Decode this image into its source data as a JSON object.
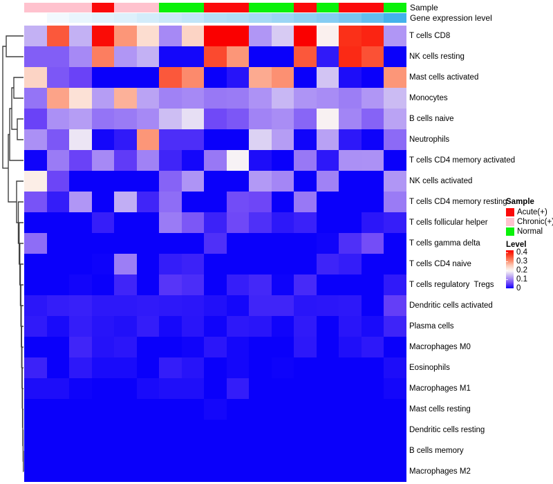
{
  "chart_data": {
    "type": "heatmap",
    "rows": [
      "T cells CD8",
      "NK cells resting",
      "Mast cells activated",
      "Monocytes",
      "B cells naive",
      "Neutrophils",
      "T cells CD4 memory activated",
      "NK cells activated",
      "T cells CD4 memory resting",
      "T cells follicular helper",
      "T cells gamma delta",
      "T cells CD4 naive",
      "T cells regulatory  Tregs",
      "Dendritic cells activated",
      "Plasma cells",
      "Macrophages M0",
      "Eosinophils",
      "Macrophages M1",
      "Mast cells resting",
      "Dendritic cells resting",
      "B cells memory",
      "Macrophages M2"
    ],
    "columns_count": 17,
    "value_range": [
      0,
      0.4
    ],
    "values": [
      [
        0.13,
        0.33,
        0.13,
        0.39,
        0.28,
        0.22,
        0.1,
        0.23,
        0.4,
        0.4,
        0.11,
        0.15,
        0.4,
        0.19,
        0.36,
        0.37,
        0.11
      ],
      [
        0.07,
        0.07,
        0.1,
        0.3,
        0.11,
        0.13,
        0.005,
        0.005,
        0.34,
        0.28,
        0,
        0,
        0.33,
        0.02,
        0.365,
        0.335,
        0
      ],
      [
        0.23,
        0.065,
        0.05,
        0,
        0,
        0,
        0.33,
        0.29,
        0,
        0.015,
        0.265,
        0.285,
        0,
        0.145,
        0.01,
        0,
        0.28
      ],
      [
        0.085,
        0.27,
        0.215,
        0.115,
        0.26,
        0.12,
        0.095,
        0.1,
        0.088,
        0.09,
        0.107,
        0.135,
        0.108,
        0.102,
        0.092,
        0.11,
        0.138
      ],
      [
        0.05,
        0.105,
        0.115,
        0.085,
        0.09,
        0.1,
        0.14,
        0.165,
        0.055,
        0.065,
        0.096,
        0.103,
        0.075,
        0.185,
        0.097,
        0.073,
        0.12
      ],
      [
        0.105,
        0.065,
        0.17,
        0.005,
        0.02,
        0.28,
        0.035,
        0.035,
        0,
        0,
        0.155,
        0.115,
        0.003,
        0.118,
        0.018,
        0.002,
        0.078
      ],
      [
        0.003,
        0.09,
        0.05,
        0.1,
        0.045,
        0.095,
        0.028,
        0.005,
        0.088,
        0.18,
        0.01,
        0,
        0.088,
        0.018,
        0.105,
        0.106,
        0
      ],
      [
        0.2,
        0.052,
        0,
        0,
        0,
        0,
        0.073,
        0.108,
        0,
        0,
        0.112,
        0.098,
        0,
        0.095,
        0,
        0,
        0.11
      ],
      [
        0.062,
        0.022,
        0.11,
        0,
        0.128,
        0.028,
        0.08,
        0,
        0,
        0.057,
        0.053,
        0,
        0.088,
        0,
        0,
        0,
        0.09
      ],
      [
        0,
        0,
        0,
        0.023,
        0,
        0,
        0.09,
        0.065,
        0.026,
        0.054,
        0.036,
        0.018,
        0.025,
        0,
        0,
        0.017,
        0.023
      ],
      [
        0.08,
        0,
        0,
        0,
        0,
        0,
        0,
        0,
        0.036,
        0,
        0,
        0,
        0,
        0.003,
        0.036,
        0.058,
        0
      ],
      [
        0,
        0,
        0,
        0.002,
        0.092,
        0,
        0.022,
        0.026,
        0,
        0,
        0,
        0,
        0,
        0.027,
        0.022,
        0,
        0
      ],
      [
        0,
        0,
        0.004,
        0,
        0.028,
        0,
        0.04,
        0.034,
        0,
        0.023,
        0.03,
        0.002,
        0.032,
        0,
        0,
        0,
        0.02
      ],
      [
        0.017,
        0.022,
        0.024,
        0.018,
        0.018,
        0.02,
        0.018,
        0.017,
        0.012,
        0.005,
        0.028,
        0.028,
        0.016,
        0.017,
        0.018,
        0,
        0.047
      ],
      [
        0.02,
        0.008,
        0.022,
        0.015,
        0.012,
        0.022,
        0.006,
        0.016,
        0.003,
        0.018,
        0.016,
        0.003,
        0.02,
        0,
        0.016,
        0.008,
        0.027
      ],
      [
        0,
        0,
        0.028,
        0.014,
        0.017,
        0,
        0,
        0.003,
        0.017,
        0.005,
        0,
        0,
        0.018,
        0,
        0.011,
        0.018,
        0
      ],
      [
        0.026,
        0,
        0.018,
        0.008,
        0.008,
        0,
        0.022,
        0.015,
        0,
        0.005,
        0,
        0.002,
        0,
        0,
        0,
        0,
        0.01
      ],
      [
        0.01,
        0.01,
        0.002,
        0,
        0,
        0.008,
        0.011,
        0.011,
        0,
        0.022,
        0,
        0,
        0,
        0,
        0,
        0,
        0.005
      ],
      [
        0,
        0,
        0,
        0,
        0,
        0,
        0,
        0,
        0.005,
        0,
        0,
        0,
        0,
        0,
        0,
        0,
        0
      ],
      [
        0,
        0,
        0,
        0,
        0,
        0,
        0,
        0,
        0,
        0,
        0,
        0,
        0,
        0,
        0,
        0,
        0
      ],
      [
        0,
        0,
        0,
        0,
        0,
        0,
        0,
        0,
        0,
        0,
        0,
        0,
        0,
        0,
        0,
        0,
        0
      ],
      [
        0,
        0,
        0,
        0,
        0,
        0,
        0,
        0,
        0,
        0,
        0,
        0,
        0,
        0,
        0,
        0,
        0
      ]
    ],
    "colormap_anchors": [
      [
        0,
        "#0A00FA"
      ],
      [
        0.05,
        "#6A42F7"
      ],
      [
        0.1,
        "#A689F5"
      ],
      [
        0.15,
        "#D7CBF3"
      ],
      [
        0.18,
        "#F7F2F5"
      ],
      [
        0.2,
        "#FCEEE7"
      ],
      [
        0.24,
        "#FCCBB9"
      ],
      [
        0.28,
        "#FC9678"
      ],
      [
        0.32,
        "#FB6547"
      ],
      [
        0.36,
        "#FB3018"
      ],
      [
        0.4,
        "#FA0000"
      ]
    ],
    "column_annotations": {
      "sample": {
        "label": "Sample",
        "classes": [
          "Chronic(+)",
          "Chronic(+)",
          "Chronic(+)",
          "Acute(+)",
          "Chronic(+)",
          "Chronic(+)",
          "Normal",
          "Normal",
          "Acute(+)",
          "Acute(+)",
          "Normal",
          "Normal",
          "Acute(+)",
          "Normal",
          "Acute(+)",
          "Acute(+)",
          "Normal"
        ],
        "palette": {
          "Acute(+)": "#FB0A0A",
          "Chronic(+)": "#FFC2CE",
          "Normal": "#0AF10A"
        }
      },
      "gene_expression": {
        "label": "Gene expression level",
        "colors": [
          "#FFFFFF",
          "#F2F9FE",
          "#E9F5FD",
          "#E2F2FC",
          "#DDF0FB",
          "#D3ECFA",
          "#CAE8F9",
          "#C1E5F8",
          "#B3DFF7",
          "#AFDDF6",
          "#A5D9F5",
          "#9BD5F4",
          "#8FD0F3",
          "#85CCF2",
          "#78C6F0",
          "#62BEEE",
          "#43B2EB"
        ]
      }
    },
    "row_dendrogram": {
      "merges": [
        [
          9,
          52,
          34,
          82,
          34
        ],
        [
          20,
          112,
          34,
          142,
          34
        ],
        [
          25,
          172,
          34,
          202,
          34
        ],
        [
          17,
          127,
          20,
          187,
          25
        ],
        [
          14,
          157,
          17,
          232,
          34
        ],
        [
          33.8,
          652,
          34,
          682,
          34
        ],
        [
          33.4,
          622,
          34,
          667,
          33.8
        ],
        [
          33.0,
          592,
          34,
          644.5,
          33.4
        ],
        [
          32.6,
          562,
          34,
          618,
          33.0
        ],
        [
          32.2,
          532,
          34,
          590,
          32.6
        ],
        [
          31.8,
          502,
          34,
          561,
          32.2
        ],
        [
          31.3,
          472,
          34,
          531.5,
          31.8
        ],
        [
          30.8,
          442,
          34,
          501.7,
          31.3
        ],
        [
          30.2,
          412,
          34,
          471.8,
          30.8
        ],
        [
          29.5,
          382,
          34,
          441.9,
          30.2
        ],
        [
          28.7,
          352,
          34,
          412,
          29.5
        ],
        [
          27.7,
          322,
          34,
          382,
          28.7
        ],
        [
          26.5,
          292,
          34,
          352,
          27.7
        ],
        [
          24,
          262,
          34,
          322,
          26.5
        ],
        [
          12,
          194.5,
          14,
          292,
          24
        ],
        [
          4,
          67,
          9,
          243.2,
          12
        ]
      ],
      "line_color": "#3F3F3F"
    },
    "legend": {
      "sample": {
        "title": "Sample",
        "items": [
          {
            "label": "Acute(+)",
            "color": "#FB0A0A"
          },
          {
            "label": "Chronic(+)",
            "color": "#FFC2CE"
          },
          {
            "label": "Normal",
            "color": "#0AF10A"
          }
        ]
      },
      "level": {
        "title": "Level",
        "ticks": [
          "0.4",
          "0.3",
          "0.2",
          "0.1",
          "0"
        ]
      }
    }
  }
}
